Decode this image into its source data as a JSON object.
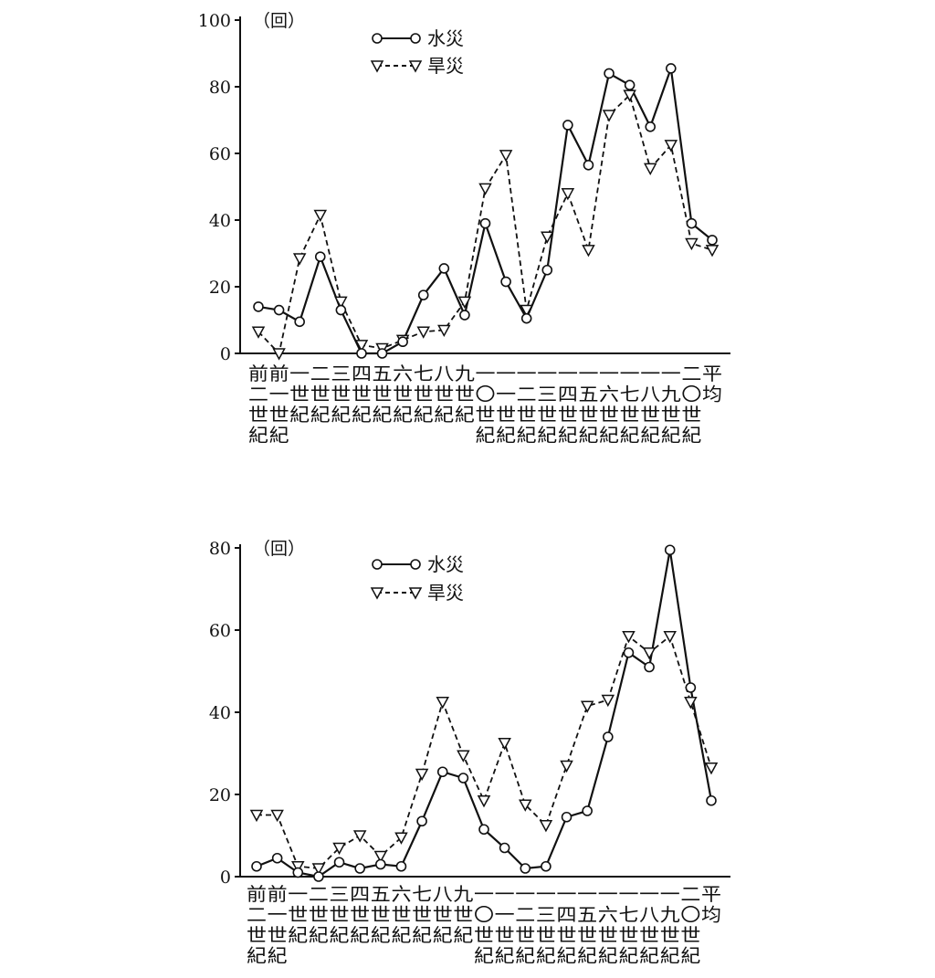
{
  "chart_data": [
    {
      "type": "line",
      "y_unit": "（回）",
      "ylim": [
        0,
        100
      ],
      "yticks": [
        0,
        20,
        40,
        60,
        80,
        100
      ],
      "legend_position": "top-center",
      "categories": [
        [
          "前",
          "二",
          "世",
          "紀"
        ],
        [
          "前",
          "一",
          "世",
          "紀"
        ],
        [
          "一",
          "世",
          "紀"
        ],
        [
          "二",
          "世",
          "紀"
        ],
        [
          "三",
          "世",
          "紀"
        ],
        [
          "四",
          "世",
          "紀"
        ],
        [
          "五",
          "世",
          "紀"
        ],
        [
          "六",
          "世",
          "紀"
        ],
        [
          "七",
          "世",
          "紀"
        ],
        [
          "八",
          "世",
          "紀"
        ],
        [
          "九",
          "世",
          "紀"
        ],
        [
          "一",
          "〇",
          "世",
          "紀"
        ],
        [
          "一",
          "一",
          "世",
          "紀"
        ],
        [
          "一",
          "二",
          "世",
          "紀"
        ],
        [
          "一",
          "三",
          "世",
          "紀"
        ],
        [
          "一",
          "四",
          "世",
          "紀"
        ],
        [
          "一",
          "五",
          "世",
          "紀"
        ],
        [
          "一",
          "六",
          "世",
          "紀"
        ],
        [
          "一",
          "七",
          "世",
          "紀"
        ],
        [
          "一",
          "八",
          "世",
          "紀"
        ],
        [
          "一",
          "九",
          "世",
          "紀"
        ],
        [
          "二",
          "〇",
          "世",
          "紀"
        ],
        [
          "平",
          "均"
        ]
      ],
      "series": [
        {
          "name": "水災",
          "marker": "circle",
          "style": "solid",
          "values": [
            14,
            13,
            9.5,
            29,
            13,
            0,
            0,
            3.5,
            17.5,
            25.5,
            11.5,
            39,
            21.5,
            10.5,
            25,
            68.5,
            56.5,
            84,
            80.5,
            68,
            85.5,
            39,
            34
          ]
        },
        {
          "name": "旱災",
          "marker": "triangle-down",
          "style": "dashed",
          "values": [
            6.5,
            0,
            28.5,
            41.5,
            15.5,
            2.5,
            1.5,
            4,
            6.5,
            7,
            15.5,
            49.5,
            59.5,
            13,
            35,
            48,
            31,
            71.5,
            77.5,
            55.5,
            62.5,
            33,
            31
          ]
        }
      ]
    },
    {
      "type": "line",
      "y_unit": "（回）",
      "ylim": [
        0,
        80
      ],
      "yticks": [
        0,
        20,
        40,
        60,
        80
      ],
      "legend_position": "top-center",
      "categories": [
        [
          "前",
          "二",
          "世",
          "紀"
        ],
        [
          "前",
          "一",
          "世",
          "紀"
        ],
        [
          "一",
          "世",
          "紀"
        ],
        [
          "二",
          "世",
          "紀"
        ],
        [
          "三",
          "世",
          "紀"
        ],
        [
          "四",
          "世",
          "紀"
        ],
        [
          "五",
          "世",
          "紀"
        ],
        [
          "六",
          "世",
          "紀"
        ],
        [
          "七",
          "世",
          "紀"
        ],
        [
          "八",
          "世",
          "紀"
        ],
        [
          "九",
          "世",
          "紀"
        ],
        [
          "一",
          "〇",
          "世",
          "紀"
        ],
        [
          "一",
          "一",
          "世",
          "紀"
        ],
        [
          "一",
          "二",
          "世",
          "紀"
        ],
        [
          "一",
          "三",
          "世",
          "紀"
        ],
        [
          "一",
          "四",
          "世",
          "紀"
        ],
        [
          "一",
          "五",
          "世",
          "紀"
        ],
        [
          "一",
          "六",
          "世",
          "紀"
        ],
        [
          "一",
          "七",
          "世",
          "紀"
        ],
        [
          "一",
          "八",
          "世",
          "紀"
        ],
        [
          "一",
          "九",
          "世",
          "紀"
        ],
        [
          "二",
          "〇",
          "世",
          "紀"
        ],
        [
          "平",
          "均"
        ]
      ],
      "series": [
        {
          "name": "水災",
          "marker": "circle",
          "style": "solid",
          "values": [
            2.5,
            4.5,
            1,
            0,
            3.5,
            2,
            3,
            2.5,
            13.5,
            25.5,
            24,
            11.5,
            7,
            2,
            2.5,
            14.5,
            16,
            34,
            54.5,
            51,
            79.5,
            46,
            18.5
          ]
        },
        {
          "name": "旱災",
          "marker": "triangle-down",
          "style": "dashed",
          "values": [
            15,
            15,
            2.5,
            2,
            7,
            10,
            5,
            9.5,
            25,
            42.5,
            29.5,
            18.5,
            32.5,
            17.5,
            12.5,
            27,
            41.5,
            43,
            58.5,
            54.5,
            58.5,
            42.5,
            26.5
          ]
        }
      ]
    }
  ]
}
